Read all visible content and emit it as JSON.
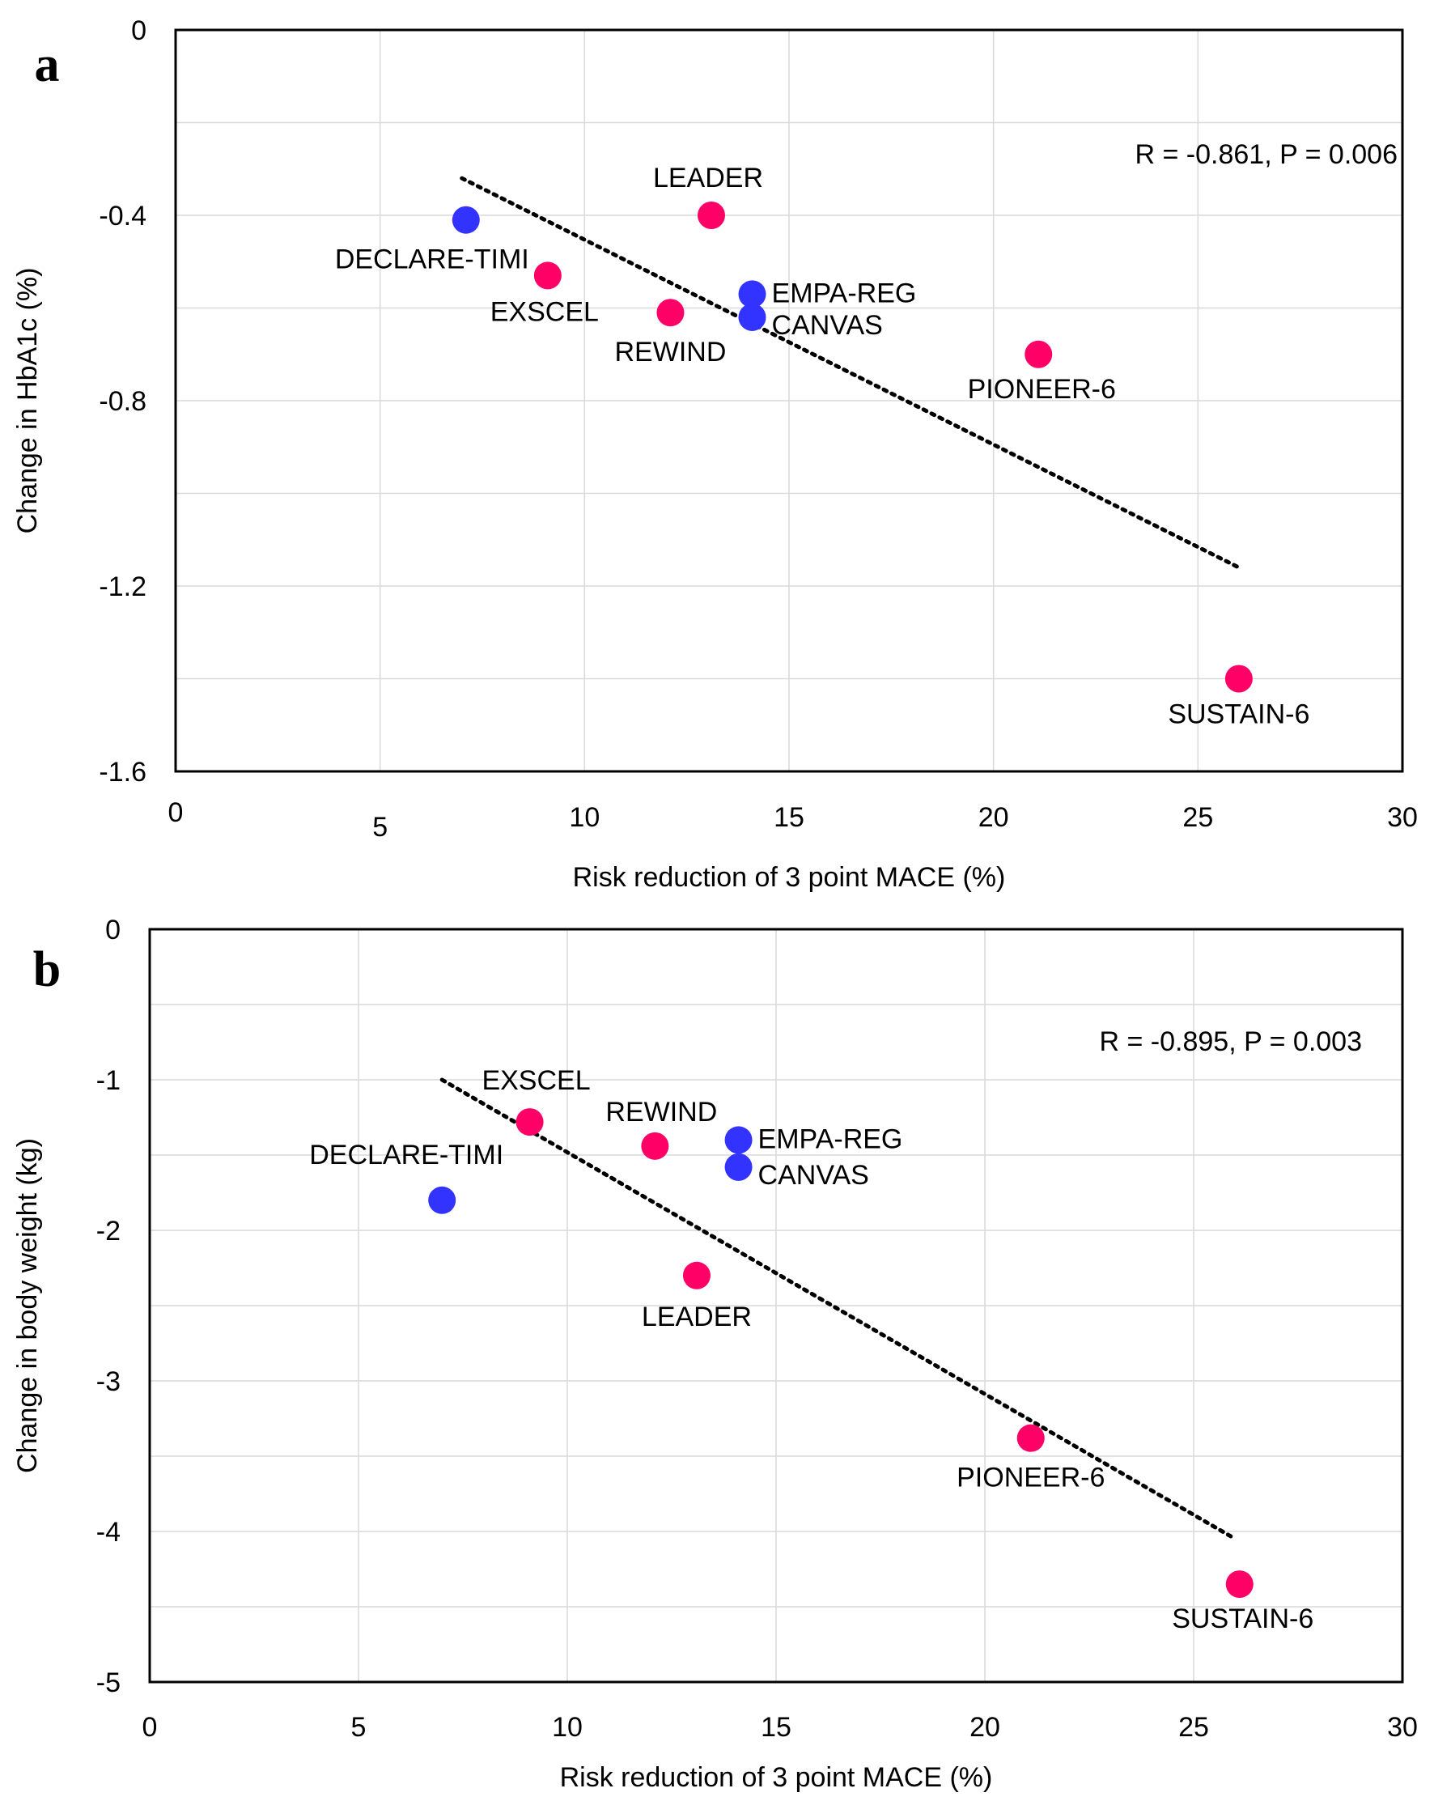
{
  "chart_data": [
    {
      "type": "scatter",
      "panel_label": "a",
      "xlabel": "Risk reduction of 3 point MACE (%)",
      "ylabel": "Change in HbA1c (%)",
      "xlim": [
        0,
        30
      ],
      "ylim": [
        -1.6,
        0
      ],
      "x_ticks": [
        0,
        5,
        10,
        15,
        20,
        25,
        30
      ],
      "y_ticks": [
        0,
        -0.4,
        -0.8,
        -1.2,
        -1.6
      ],
      "y_tick_labels": [
        "0",
        "-0.4",
        "-0.8",
        "-1.2",
        "-1.6"
      ],
      "grid": true,
      "annotation": "R = -0.861, P = 0.006",
      "colors": {
        "pink": "#ff0066",
        "blue": "#3333ff",
        "trendline": "#000000"
      },
      "trendline": {
        "x": [
          7,
          26
        ],
        "y": [
          -0.32,
          -1.16
        ]
      },
      "points": [
        {
          "label": "DECLARE-TIMI",
          "x": 7.1,
          "y": -0.41,
          "color": "blue"
        },
        {
          "label": "EXSCEL",
          "x": 9.1,
          "y": -0.53,
          "color": "pink"
        },
        {
          "label": "REWIND",
          "x": 12.1,
          "y": -0.61,
          "color": "pink"
        },
        {
          "label": "LEADER",
          "x": 13.1,
          "y": -0.4,
          "color": "pink"
        },
        {
          "label": "EMPA-REG",
          "x": 14.1,
          "y": -0.57,
          "color": "blue"
        },
        {
          "label": "CANVAS",
          "x": 14.1,
          "y": -0.62,
          "color": "blue"
        },
        {
          "label": "PIONEER-6",
          "x": 21.1,
          "y": -0.7,
          "color": "pink"
        },
        {
          "label": "SUSTAIN-6",
          "x": 26,
          "y": -1.4,
          "color": "pink"
        }
      ]
    },
    {
      "type": "scatter",
      "panel_label": "b",
      "xlabel": "Risk reduction of 3 point MACE (%)",
      "ylabel": "Change in body weight (kg)",
      "xlim": [
        0,
        30
      ],
      "ylim": [
        -5,
        0
      ],
      "x_ticks": [
        0,
        5,
        10,
        15,
        20,
        25,
        30
      ],
      "y_ticks": [
        0,
        -1,
        -2,
        -3,
        -4,
        -5
      ],
      "y_tick_labels": [
        "0",
        "-1",
        "-2",
        "-3",
        "-4",
        "-5"
      ],
      "grid": true,
      "annotation": "R = -0.895, P = 0.003",
      "colors": {
        "pink": "#ff0066",
        "blue": "#3333ff",
        "trendline": "#000000"
      },
      "trendline": {
        "x": [
          7,
          26
        ],
        "y": [
          -1.0,
          -4.05
        ]
      },
      "points": [
        {
          "label": "DECLARE-TIMI",
          "x": 7.0,
          "y": -1.8,
          "color": "blue"
        },
        {
          "label": "EXSCEL",
          "x": 9.1,
          "y": -1.28,
          "color": "pink"
        },
        {
          "label": "REWIND",
          "x": 12.1,
          "y": -1.44,
          "color": "pink"
        },
        {
          "label": "LEADER",
          "x": 13.1,
          "y": -2.3,
          "color": "pink"
        },
        {
          "label": "EMPA-REG",
          "x": 14.1,
          "y": -1.4,
          "color": "blue"
        },
        {
          "label": "CANVAS",
          "x": 14.1,
          "y": -1.58,
          "color": "blue"
        },
        {
          "label": "PIONEER-6",
          "x": 21.1,
          "y": -3.38,
          "color": "pink"
        },
        {
          "label": "SUSTAIN-6",
          "x": 26.1,
          "y": -4.35,
          "color": "pink"
        }
      ]
    }
  ]
}
